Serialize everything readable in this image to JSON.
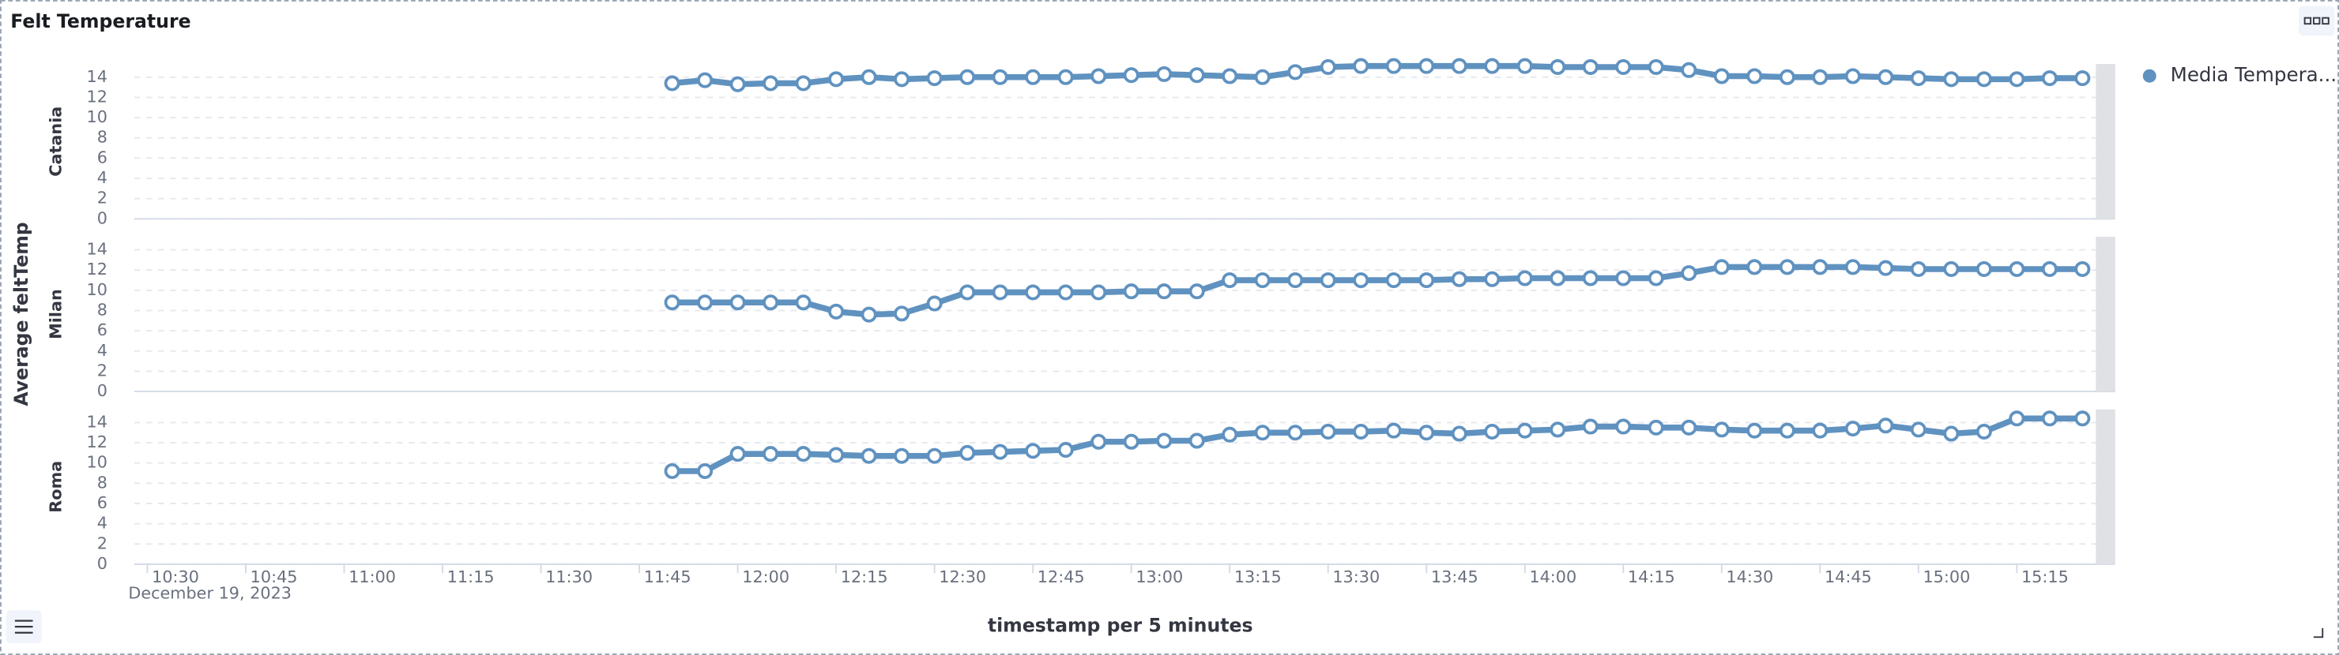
{
  "panel": {
    "title": "Felt Temperature"
  },
  "chart_data": {
    "type": "line",
    "y_label": "Average feltTemp",
    "x_label": "timestamp per 5 minutes",
    "x_date_label": "December 19, 2023",
    "xlim": [
      "10:28",
      "15:30"
    ],
    "xticks": [
      "10:30",
      "10:45",
      "11:00",
      "11:15",
      "11:30",
      "11:45",
      "12:00",
      "12:15",
      "12:30",
      "12:45",
      "13:00",
      "13:15",
      "13:30",
      "13:45",
      "14:00",
      "14:15",
      "14:30",
      "14:45",
      "15:00",
      "15:15"
    ],
    "ylim": [
      0,
      15.3
    ],
    "yticks": [
      0,
      2,
      4,
      6,
      8,
      10,
      12,
      14
    ],
    "grid": true,
    "legend": "right",
    "series_name": "Media Tempera...",
    "color": "#6092c0",
    "x": [
      "11:50",
      "11:55",
      "12:00",
      "12:05",
      "12:10",
      "12:15",
      "12:20",
      "12:25",
      "12:30",
      "12:35",
      "12:40",
      "12:45",
      "12:50",
      "12:55",
      "13:00",
      "13:05",
      "13:10",
      "13:15",
      "13:20",
      "13:25",
      "13:30",
      "13:35",
      "13:40",
      "13:45",
      "13:50",
      "13:55",
      "14:00",
      "14:05",
      "14:10",
      "14:15",
      "14:20",
      "14:25",
      "14:30",
      "14:35",
      "14:40",
      "14:45",
      "14:50",
      "14:55",
      "15:00",
      "15:05",
      "15:10",
      "15:15",
      "15:20",
      "15:25"
    ],
    "panels": [
      {
        "label": "Catania",
        "values": [
          13.4,
          13.7,
          13.3,
          13.4,
          13.4,
          13.8,
          14.0,
          13.8,
          13.9,
          14.0,
          14.0,
          14.0,
          14.0,
          14.1,
          14.2,
          14.3,
          14.2,
          14.1,
          14.0,
          14.5,
          15.0,
          15.1,
          15.1,
          15.1,
          15.1,
          15.1,
          15.1,
          15.0,
          15.0,
          15.0,
          15.0,
          14.7,
          14.1,
          14.1,
          14.0,
          14.0,
          14.1,
          14.0,
          13.9,
          13.8,
          13.8,
          13.8,
          13.9,
          13.9
        ]
      },
      {
        "label": "Milan",
        "values": [
          8.8,
          8.8,
          8.8,
          8.8,
          8.8,
          7.9,
          7.6,
          7.7,
          8.7,
          9.8,
          9.8,
          9.8,
          9.8,
          9.8,
          9.9,
          9.9,
          9.9,
          11.0,
          11.0,
          11.0,
          11.0,
          11.0,
          11.0,
          11.0,
          11.1,
          11.1,
          11.2,
          11.2,
          11.2,
          11.2,
          11.2,
          11.7,
          12.3,
          12.3,
          12.3,
          12.3,
          12.3,
          12.2,
          12.1,
          12.1,
          12.1,
          12.1,
          12.1,
          12.1
        ]
      },
      {
        "label": "Roma",
        "values": [
          9.2,
          9.2,
          10.9,
          10.9,
          10.9,
          10.8,
          10.7,
          10.7,
          10.7,
          11.0,
          11.1,
          11.2,
          11.3,
          12.1,
          12.1,
          12.2,
          12.2,
          12.8,
          13.0,
          13.0,
          13.1,
          13.1,
          13.2,
          13.0,
          12.9,
          13.1,
          13.2,
          13.3,
          13.6,
          13.6,
          13.5,
          13.5,
          13.3,
          13.2,
          13.2,
          13.2,
          13.4,
          13.7,
          13.3,
          12.9,
          13.1,
          14.4,
          14.4,
          14.4
        ]
      }
    ]
  }
}
